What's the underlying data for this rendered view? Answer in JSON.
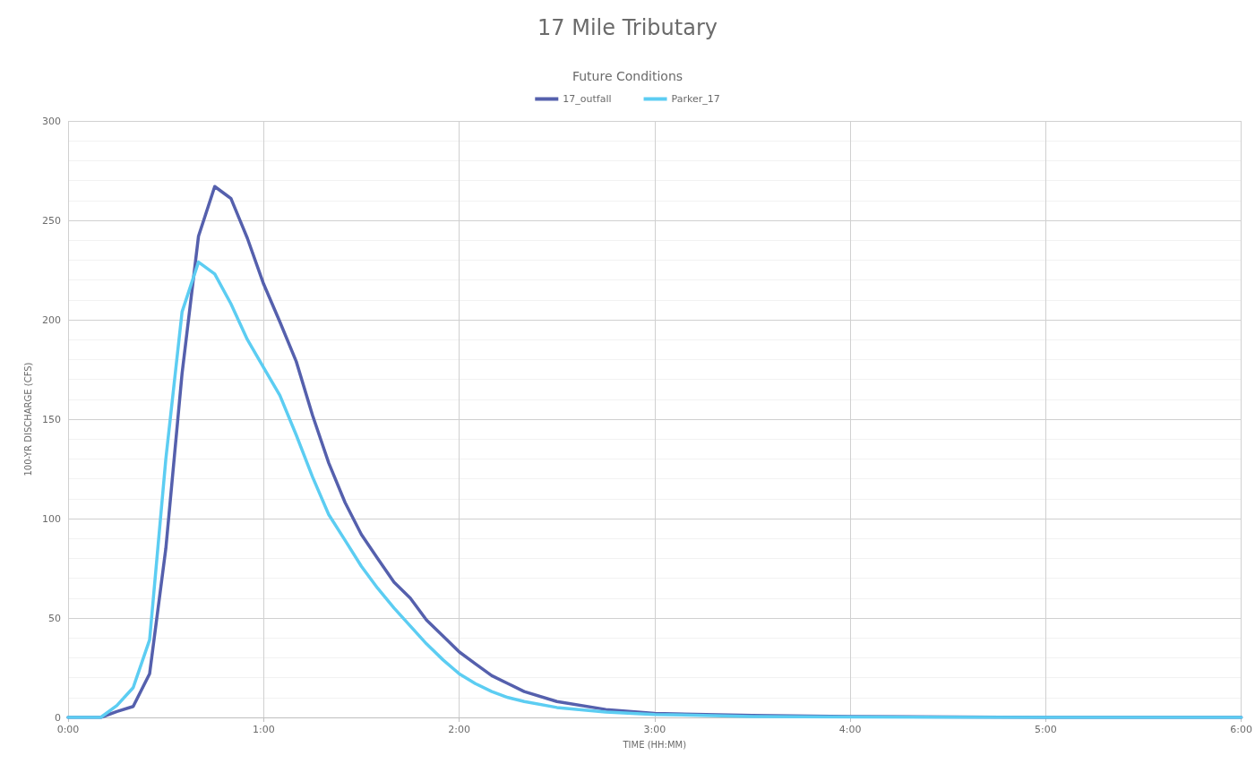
{
  "chart_data": {
    "type": "line",
    "title": "17 Mile Tributary",
    "subtitle": "Future Conditions",
    "xlabel": "TIME (HH:MM)",
    "ylabel": "100-YR DISCHARGE (CFS)",
    "x": [
      0,
      0.167,
      0.25,
      0.333,
      0.417,
      0.5,
      0.583,
      0.667,
      0.75,
      0.833,
      0.917,
      1,
      1.083,
      1.167,
      1.25,
      1.333,
      1.417,
      1.5,
      1.583,
      1.667,
      1.75,
      1.833,
      1.917,
      2,
      2.083,
      2.167,
      2.25,
      2.333,
      2.5,
      2.75,
      3,
      3.5,
      4,
      5,
      6
    ],
    "series": [
      {
        "name": "17_outfall",
        "color": "#5560ad",
        "values": [
          0,
          0,
          3,
          5.5,
          22,
          85,
          173,
          242,
          267,
          261,
          241,
          218,
          199,
          179,
          152,
          128,
          108,
          92,
          80,
          68,
          60,
          49,
          41,
          33,
          27,
          21,
          17,
          13,
          8,
          4,
          2,
          1,
          0.5,
          0,
          0
        ]
      },
      {
        "name": "Parker_17",
        "color": "#5ccdf2",
        "values": [
          0,
          0,
          6,
          15,
          39,
          130,
          204,
          229,
          223,
          208,
          190,
          176,
          162,
          142,
          121,
          102,
          89,
          76,
          65,
          55,
          46,
          37,
          29,
          22,
          17,
          13,
          10,
          8,
          5,
          2.7,
          1.5,
          0.5,
          0.2,
          0,
          0
        ]
      }
    ],
    "xlim": [
      0,
      6
    ],
    "xticks": [
      {
        "value": 0,
        "label": "0:00"
      },
      {
        "value": 1,
        "label": "1:00"
      },
      {
        "value": 2,
        "label": "2:00"
      },
      {
        "value": 3,
        "label": "3:00"
      },
      {
        "value": 4,
        "label": "4:00"
      },
      {
        "value": 5,
        "label": "5:00"
      },
      {
        "value": 6,
        "label": "6:00"
      }
    ],
    "ylim": [
      0,
      300
    ],
    "yticks": [
      0,
      50,
      100,
      150,
      200,
      250,
      300
    ],
    "grid": true,
    "legend": "top",
    "marker": "none",
    "line_style": "solid"
  }
}
